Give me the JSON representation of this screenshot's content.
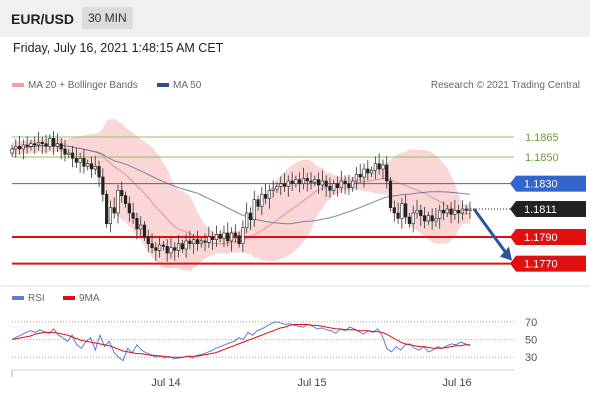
{
  "header": {
    "symbol": "EUR/USD",
    "timeframe": "30 MIN"
  },
  "datetime": "Friday, July 16, 2021 1:48:15 AM CET",
  "legend": {
    "ma20": "MA 20 + Bollinger Bands",
    "ma50": "MA 50",
    "credit": "Research © 2021 Trading Central",
    "rsi": "RSI",
    "ma9": "9MA"
  },
  "colors": {
    "bollinger": "#f5b5b5",
    "ma20": "#e58080",
    "ma50": "#5a6a8a",
    "resistance": "#8cc063",
    "pivot": "#3366cc",
    "support": "#e01010",
    "current": "#222222",
    "arrow": "#2a5599",
    "rsi": "#5b7fd6",
    "ma9": "#dd1111"
  },
  "chart_data": [
    {
      "type": "candlestick",
      "ylim": [
        1.176,
        1.188
      ],
      "x_ticks": [
        "Jul 14",
        "Jul 15",
        "Jul 16"
      ],
      "levels": [
        {
          "label": "1.1865",
          "value": 1.1865,
          "kind": "resistance"
        },
        {
          "label": "1.1850",
          "value": 1.185,
          "kind": "resistance"
        },
        {
          "label": "1.1830",
          "value": 1.183,
          "kind": "pivot"
        },
        {
          "label": "1.1811",
          "value": 1.1811,
          "kind": "current"
        },
        {
          "label": "1.1790",
          "value": 1.179,
          "kind": "support"
        },
        {
          "label": "1.1770",
          "value": 1.177,
          "kind": "support"
        }
      ],
      "close": [
        1.1856,
        1.1858,
        1.1856,
        1.1859,
        1.1858,
        1.186,
        1.1859,
        1.1861,
        1.186,
        1.1858,
        1.1864,
        1.1858,
        1.186,
        1.1856,
        1.1852,
        1.1853,
        1.1849,
        1.1846,
        1.1849,
        1.1843,
        1.1845,
        1.1841,
        1.1843,
        1.1835,
        1.1822,
        1.18,
        1.1812,
        1.1808,
        1.1825,
        1.1821,
        1.1815,
        1.1808,
        1.1804,
        1.1796,
        1.1799,
        1.179,
        1.1785,
        1.1782,
        1.178,
        1.1784,
        1.1783,
        1.1778,
        1.1782,
        1.178,
        1.1785,
        1.1781,
        1.1787,
        1.1785,
        1.1788,
        1.1785,
        1.1787,
        1.1786,
        1.179,
        1.1788,
        1.1792,
        1.1789,
        1.1793,
        1.1787,
        1.1793,
        1.1791,
        1.1785,
        1.1797,
        1.1808,
        1.1803,
        1.1818,
        1.1813,
        1.1822,
        1.1819,
        1.1825,
        1.1826,
        1.1828,
        1.183,
        1.1828,
        1.1832,
        1.183,
        1.1833,
        1.183,
        1.1834,
        1.1832,
        1.1831,
        1.1833,
        1.1829,
        1.1832,
        1.1828,
        1.1825,
        1.183,
        1.1827,
        1.1832,
        1.183,
        1.1827,
        1.1832,
        1.1837,
        1.1835,
        1.1841,
        1.1838,
        1.184,
        1.1845,
        1.1841,
        1.1844,
        1.1832,
        1.1812,
        1.1808,
        1.1804,
        1.1815,
        1.1805,
        1.18,
        1.1808,
        1.181,
        1.1806,
        1.1802,
        1.1806,
        1.1802,
        1.1804,
        1.181,
        1.1808,
        1.1811,
        1.1807,
        1.181,
        1.1808,
        1.1811,
        1.181,
        1.1811
      ],
      "rsi": [
        50,
        53,
        55,
        58,
        60,
        58,
        61,
        59,
        57,
        62,
        55,
        52,
        48,
        55,
        44,
        40,
        48,
        52,
        38,
        55,
        42,
        48,
        36,
        30,
        26,
        40,
        35,
        44,
        38,
        35,
        33,
        30,
        32,
        29,
        31,
        28,
        29,
        30,
        31,
        29,
        32,
        33,
        35,
        37,
        40,
        42,
        44,
        46,
        48,
        52,
        50,
        58,
        55,
        60,
        62,
        65,
        68,
        70,
        69,
        67,
        68,
        66,
        65,
        64,
        67,
        65,
        62,
        63,
        61,
        60,
        57,
        62,
        60,
        64,
        62,
        59,
        56,
        60,
        58,
        62,
        55,
        40,
        36,
        42,
        38,
        44,
        45,
        40,
        38,
        42,
        36,
        38,
        42,
        40,
        43,
        45,
        44,
        47,
        45,
        43
      ],
      "rsi_ma9": [
        50,
        51,
        52,
        53,
        54,
        56,
        57,
        58,
        58,
        58,
        57,
        56,
        55,
        53,
        51,
        49,
        48,
        47,
        46,
        45,
        44,
        43,
        41,
        39,
        37,
        36,
        35,
        34,
        34,
        33,
        32,
        32,
        31,
        31,
        30,
        30,
        30,
        30,
        31,
        31,
        31,
        32,
        33,
        34,
        35,
        37,
        39,
        41,
        43,
        45,
        47,
        49,
        51,
        53,
        55,
        57,
        59,
        61,
        63,
        64,
        66,
        67,
        67,
        67,
        67,
        66,
        66,
        65,
        64,
        63,
        62,
        62,
        61,
        61,
        61,
        60,
        60,
        60,
        59,
        59,
        58,
        56,
        53,
        50,
        47,
        45,
        44,
        43,
        42,
        42,
        41,
        40,
        40,
        40,
        41,
        42,
        43,
        43,
        44,
        44
      ],
      "rsi_levels": [
        {
          "label": "70",
          "value": 70
        },
        {
          "label": "50",
          "value": 50
        },
        {
          "label": "30",
          "value": 30
        }
      ]
    }
  ]
}
